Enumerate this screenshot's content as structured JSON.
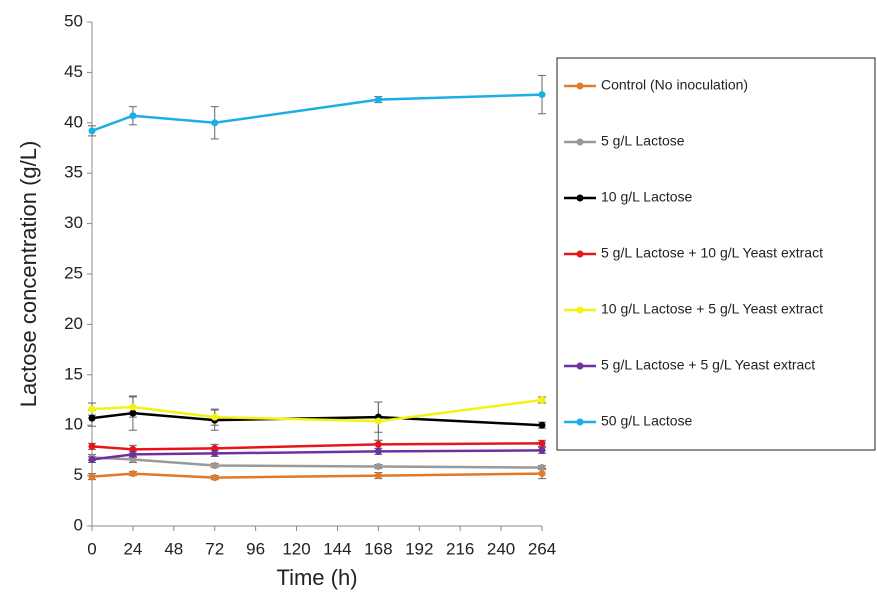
{
  "chart_data": {
    "type": "line",
    "x_label": "Time (h)",
    "y_label": "Lactose concentration (g/L)",
    "x": [
      0,
      24,
      72,
      168,
      264
    ],
    "xlim": [
      0,
      264
    ],
    "xticks": [
      0,
      24,
      48,
      72,
      96,
      120,
      144,
      168,
      192,
      216,
      240,
      264
    ],
    "ylim": [
      0,
      50
    ],
    "yticks": [
      0,
      5,
      10,
      15,
      20,
      25,
      30,
      35,
      40,
      45,
      50
    ],
    "grid": false,
    "legend": "right",
    "series": [
      {
        "name": "Control (No inoculation)",
        "color": "#e07b2c",
        "values": [
          4.9,
          5.2,
          4.8,
          5.0,
          5.2
        ],
        "errors": [
          0.3,
          0.2,
          0.2,
          0.3,
          0.5
        ]
      },
      {
        "name": "5 g/L Lactose",
        "color": "#999999",
        "values": [
          6.8,
          6.6,
          6.0,
          5.9,
          5.8
        ],
        "errors": [
          0.3,
          0.3,
          0.2,
          0.2,
          0.2
        ]
      },
      {
        "name": "10 g/L Lactose",
        "color": "#000000",
        "values": [
          10.7,
          11.2,
          10.5,
          10.8,
          10.0
        ],
        "errors": [
          0.8,
          1.7,
          1.0,
          1.5,
          0.3
        ]
      },
      {
        "name": "5 g/L Lactose + 10 g/L Yeast extract",
        "color": "#e8141b",
        "values": [
          7.9,
          7.6,
          7.7,
          8.1,
          8.2
        ],
        "errors": [
          0.3,
          0.4,
          0.4,
          0.4,
          0.3
        ]
      },
      {
        "name": "10 g/L Lactose + 5 g/L Yeast extract",
        "color": "#f5f20f",
        "values": [
          11.6,
          11.8,
          10.8,
          10.4,
          12.5
        ],
        "errors": [
          0.6,
          1.0,
          0.8,
          1.9,
          0.3
        ]
      },
      {
        "name": "5 g/L Lactose + 5 g/L Yeast extract",
        "color": "#7030a0",
        "values": [
          6.6,
          7.1,
          7.2,
          7.4,
          7.5
        ],
        "errors": [
          0.3,
          0.3,
          0.3,
          0.3,
          0.3
        ]
      },
      {
        "name": "50 g/L Lactose",
        "color": "#1bafe6",
        "values": [
          39.2,
          40.7,
          40.0,
          42.3,
          42.8
        ],
        "errors": [
          0.5,
          0.9,
          1.6,
          0.3,
          1.9
        ]
      }
    ]
  }
}
